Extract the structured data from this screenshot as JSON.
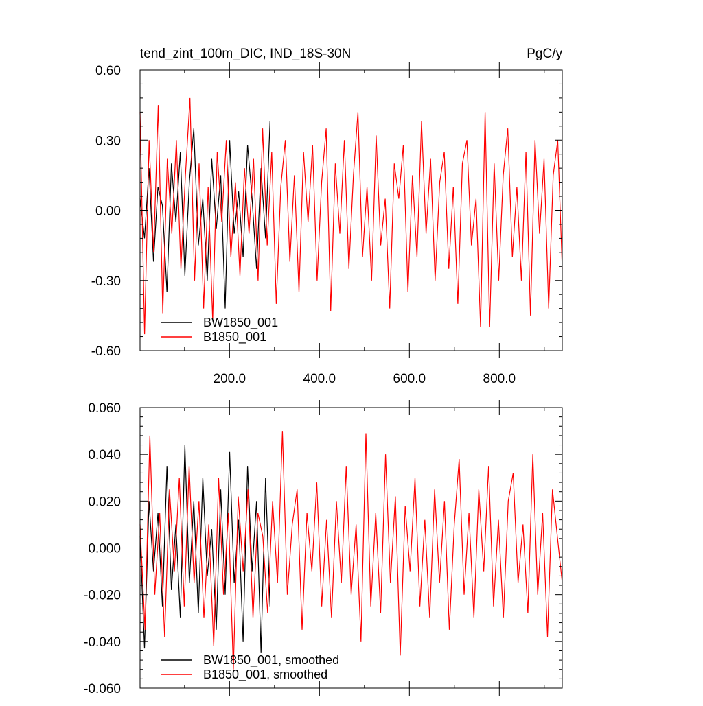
{
  "chart_data": [
    {
      "type": "line",
      "title": "tend_zint_100m_DIC, IND_18S-30N",
      "units": "PgC/y",
      "xlim": [
        1,
        940
      ],
      "ylim": [
        -0.6,
        0.6
      ],
      "xticks": [
        200,
        400,
        600,
        800
      ],
      "xtick_labels": [
        "200.0",
        "400.0",
        "600.0",
        "800.0"
      ],
      "yticks": [
        -0.6,
        -0.3,
        0.0,
        0.3,
        0.6
      ],
      "ytick_labels": [
        "-0.60",
        "-0.30",
        "0.00",
        "0.30",
        "0.60"
      ],
      "grid": false,
      "legend_position": "bottom-left",
      "series": [
        {
          "name": "BW1850_001",
          "color": "#000000",
          "x_start": 1,
          "x_end": 290,
          "values": [
            0.05,
            -0.12,
            0.18,
            -0.22,
            0.1,
            0.02,
            -0.35,
            0.2,
            -0.05,
            0.25,
            -0.28,
            0.12,
            0.35,
            -0.15,
            0.05,
            -0.3,
            0.22,
            -0.08,
            0.15,
            -0.42,
            0.3,
            -0.1,
            0.08,
            -0.2,
            0.28,
            0.05,
            -0.25,
            0.18,
            -0.12,
            0.38
          ]
        },
        {
          "name": "B1850_001",
          "color": "#ff0000",
          "x_start": 1,
          "x_end": 940,
          "values": [
            0.42,
            -0.53,
            0.3,
            -0.18,
            0.45,
            -0.44,
            0.22,
            -0.1,
            0.3,
            -0.25,
            0.15,
            0.48,
            -0.3,
            0.2,
            -0.42,
            0.1,
            -0.47,
            0.25,
            -0.05,
            0.3,
            -0.2,
            0.12,
            -0.28,
            0.18,
            -0.1,
            0.22,
            -0.3,
            0.35,
            -0.15,
            0.25,
            -0.4,
            0.1,
            0.3,
            -0.22,
            0.15,
            -0.35,
            0.25,
            -0.05,
            0.28,
            -0.3,
            0.12,
            0.35,
            -0.43,
            0.2,
            -0.1,
            0.3,
            -0.25,
            0.15,
            0.42,
            -0.2,
            0.1,
            -0.3,
            0.32,
            -0.15,
            0.05,
            -0.42,
            0.2,
            0.05,
            0.28,
            -0.35,
            0.15,
            -0.2,
            0.38,
            -0.1,
            0.22,
            -0.3,
            0.12,
            0.25,
            -0.25,
            0.1,
            -0.4,
            0.2,
            0.3,
            -0.15,
            0.05,
            -0.5,
            0.42,
            -0.5,
            0.2,
            -0.3,
            0.15,
            0.35,
            -0.2,
            0.1,
            -0.3,
            0.25,
            -0.45,
            0.3,
            -0.1,
            0.22,
            -0.42,
            0.15,
            0.3,
            -0.25
          ]
        }
      ]
    },
    {
      "type": "line",
      "title": "",
      "xlim": [
        1,
        940
      ],
      "ylim": [
        -0.06,
        0.06
      ],
      "xticks": [
        200,
        400,
        600,
        800
      ],
      "yticks": [
        -0.06,
        -0.04,
        -0.02,
        0.0,
        0.02,
        0.04,
        0.06
      ],
      "ytick_labels": [
        "-0.060",
        "-0.040",
        "-0.020",
        "0.000",
        "0.020",
        "0.040",
        "0.060"
      ],
      "grid": false,
      "legend_position": "bottom-left",
      "series": [
        {
          "name": "BW1850_001, smoothed",
          "color": "#000000",
          "x_start": 1,
          "x_end": 290,
          "values": [
            0.005,
            -0.043,
            0.02,
            -0.01,
            0.015,
            -0.025,
            0.035,
            -0.018,
            0.01,
            -0.03,
            0.044,
            -0.015,
            0.02,
            -0.028,
            0.03,
            -0.012,
            0.008,
            -0.035,
            0.025,
            -0.02,
            0.041,
            -0.015,
            0.012,
            -0.04,
            0.035,
            -0.01,
            0.02,
            -0.045,
            0.03,
            -0.025
          ]
        },
        {
          "name": "B1850_001, smoothed",
          "color": "#ff0000",
          "x_start": 1,
          "x_end": 940,
          "values": [
            0.01,
            -0.035,
            0.048,
            -0.02,
            0.015,
            -0.038,
            0.025,
            -0.01,
            0.03,
            -0.025,
            0.035,
            -0.015,
            0.02,
            -0.03,
            0.01,
            -0.042,
            0.03,
            -0.02,
            0.015,
            -0.052,
            0.022,
            -0.01,
            0.025,
            -0.03,
            0.015,
            0.005,
            -0.028,
            0.02,
            -0.015,
            0.05,
            -0.02,
            0.01,
            0.025,
            -0.035,
            0.015,
            -0.01,
            0.028,
            -0.025,
            0.012,
            -0.03,
            0.02,
            -0.015,
            0.035,
            -0.02,
            0.01,
            -0.04,
            0.049,
            -0.025,
            0.015,
            -0.028,
            0.04,
            -0.015,
            0.022,
            -0.046,
            0.018,
            -0.01,
            0.03,
            -0.025,
            0.012,
            -0.03,
            0.025,
            -0.015,
            0.02,
            -0.035,
            0.01,
            0.038,
            -0.02,
            0.015,
            -0.03,
            0.025,
            -0.01,
            0.035,
            -0.025,
            0.012,
            -0.03,
            0.02,
            0.032,
            -0.015,
            0.01,
            -0.028,
            0.04,
            -0.02,
            0.015,
            -0.038,
            0.025,
            0.005,
            -0.015
          ]
        }
      ]
    }
  ]
}
